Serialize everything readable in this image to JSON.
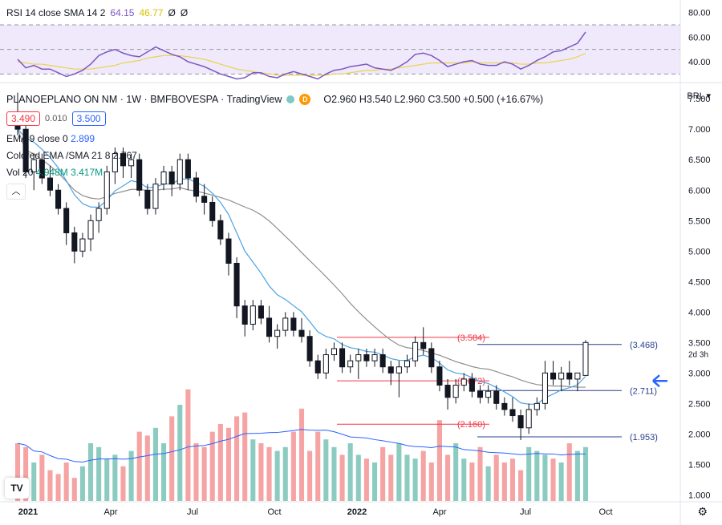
{
  "rsi_legend": {
    "name": "RSI 14 close SMA 14 2",
    "rsi_value": "64.15",
    "sma_value": "46.77",
    "extra1": "Ø",
    "extra2": "Ø"
  },
  "header": {
    "title": "PLANOEPLANO ON NM · 1W · BMFBOVESPA · TradingView",
    "badge": "D",
    "ohlc": "O2.960 H3.540 L2.960 C3.500 +0.500 (+16.67%)",
    "bid": "3.490",
    "spread": "0.010",
    "ask": "3.500"
  },
  "indicators": {
    "ema": "EMA 9 close 0",
    "ema_value": "2.899",
    "colored_ema": "Colored EMA /SMA 21 8",
    "colored_ema_value": "2.767",
    "vol": "Vol 20",
    "vol_value1": "4.948M",
    "vol_value2": "3.417M",
    "collapse_icon": "chevron-up"
  },
  "currency": "BRL",
  "colors": {
    "up": "#089981",
    "down": "#131722",
    "vol_up": "#8ccbc0",
    "vol_down": "#f5a3a3",
    "ema": "#4ba3e3",
    "sma": "#8f8f8f",
    "rsi": "#7e57c2",
    "rsi_sma": "#e8d44d",
    "level": "#2a3f8f",
    "red_level": "#f23645"
  },
  "price_axis": [
    "7.500",
    "7.000",
    "6.500",
    "6.000",
    "5.500",
    "5.000",
    "4.500",
    "4.000",
    "3.500",
    "3.000",
    "2.500",
    "2.000",
    "1.500",
    "1.000"
  ],
  "rsi_axis": [
    "80.00",
    "60.00",
    "40.00"
  ],
  "time_axis": [
    "2021",
    "Apr",
    "Jul",
    "Oct",
    "2022",
    "Apr",
    "Jul",
    "Oct"
  ],
  "price_tag": {
    "value": "3.500",
    "countdown": "2d 3h"
  },
  "levels": [
    {
      "label": "(3.584)",
      "color": "red",
      "value": 3.584
    },
    {
      "label": "(3.468)",
      "color": "blue",
      "value": 3.468
    },
    {
      "label": "(2.872)",
      "color": "red",
      "value": 2.872
    },
    {
      "label": "(2.711)",
      "color": "blue",
      "value": 2.711
    },
    {
      "label": "(2.160)",
      "color": "red",
      "value": 2.16
    },
    {
      "label": "(1.953)",
      "color": "blue",
      "value": 1.953
    }
  ],
  "chart_data": {
    "type": "candlestick",
    "candles": [
      [
        7.2,
        7.6,
        6.9,
        7.0
      ],
      [
        7.0,
        7.2,
        6.2,
        6.3
      ],
      [
        6.3,
        6.6,
        6.0,
        6.5
      ],
      [
        6.5,
        6.6,
        6.1,
        6.2
      ],
      [
        6.2,
        6.4,
        5.9,
        6.0
      ],
      [
        6.0,
        6.1,
        5.6,
        5.7
      ],
      [
        5.7,
        5.8,
        5.1,
        5.3
      ],
      [
        5.3,
        5.4,
        4.8,
        5.0
      ],
      [
        5.0,
        5.3,
        4.9,
        5.2
      ],
      [
        5.2,
        5.6,
        5.0,
        5.5
      ],
      [
        5.5,
        5.8,
        5.3,
        5.7
      ],
      [
        5.7,
        6.4,
        5.6,
        6.3
      ],
      [
        6.3,
        6.7,
        6.1,
        6.6
      ],
      [
        6.6,
        6.7,
        6.2,
        6.4
      ],
      [
        6.4,
        6.6,
        6.2,
        6.5
      ],
      [
        6.5,
        6.6,
        5.9,
        6.0
      ],
      [
        6.0,
        6.1,
        5.6,
        5.7
      ],
      [
        5.7,
        6.2,
        5.6,
        6.1
      ],
      [
        6.1,
        6.4,
        6.0,
        6.3
      ],
      [
        6.3,
        6.4,
        5.9,
        6.1
      ],
      [
        6.1,
        6.6,
        6.0,
        6.5
      ],
      [
        6.5,
        6.6,
        6.0,
        6.2
      ],
      [
        6.2,
        6.3,
        5.8,
        5.9
      ],
      [
        5.9,
        6.1,
        5.6,
        5.8
      ],
      [
        5.8,
        5.9,
        5.4,
        5.5
      ],
      [
        5.5,
        5.6,
        5.1,
        5.2
      ],
      [
        5.2,
        5.3,
        4.6,
        4.8
      ],
      [
        4.8,
        4.9,
        3.9,
        4.1
      ],
      [
        4.1,
        4.2,
        3.6,
        3.8
      ],
      [
        3.8,
        4.2,
        3.7,
        4.1
      ],
      [
        4.1,
        4.2,
        3.8,
        3.9
      ],
      [
        3.9,
        4.1,
        3.5,
        3.6
      ],
      [
        3.6,
        3.8,
        3.4,
        3.7
      ],
      [
        3.7,
        4.0,
        3.6,
        3.9
      ],
      [
        3.9,
        4.0,
        3.6,
        3.7
      ],
      [
        3.7,
        3.9,
        3.5,
        3.6
      ],
      [
        3.6,
        3.7,
        3.1,
        3.2
      ],
      [
        3.2,
        3.3,
        2.9,
        3.0
      ],
      [
        3.0,
        3.4,
        2.9,
        3.3
      ],
      [
        3.3,
        3.5,
        3.2,
        3.4
      ],
      [
        3.4,
        3.5,
        3.0,
        3.1
      ],
      [
        3.1,
        3.3,
        3.0,
        3.2
      ],
      [
        3.2,
        3.4,
        2.9,
        3.3
      ],
      [
        3.3,
        3.4,
        3.1,
        3.2
      ],
      [
        3.2,
        3.4,
        3.1,
        3.3
      ],
      [
        3.3,
        3.4,
        3.0,
        3.1
      ],
      [
        3.1,
        3.2,
        2.8,
        3.0
      ],
      [
        3.0,
        3.2,
        2.6,
        3.1
      ],
      [
        3.1,
        3.3,
        3.0,
        3.2
      ],
      [
        3.2,
        3.6,
        3.1,
        3.5
      ],
      [
        3.5,
        3.75,
        3.3,
        3.4
      ],
      [
        3.4,
        3.5,
        3.0,
        3.1
      ],
      [
        3.1,
        3.2,
        2.7,
        2.8
      ],
      [
        2.8,
        2.9,
        2.4,
        2.6
      ],
      [
        2.6,
        2.9,
        2.5,
        2.8
      ],
      [
        2.8,
        3.0,
        2.7,
        2.9
      ],
      [
        2.9,
        3.0,
        2.6,
        2.7
      ],
      [
        2.7,
        2.8,
        2.5,
        2.6
      ],
      [
        2.6,
        2.8,
        2.5,
        2.7
      ],
      [
        2.7,
        2.8,
        2.4,
        2.5
      ],
      [
        2.5,
        2.6,
        2.3,
        2.4
      ],
      [
        2.4,
        2.6,
        2.2,
        2.3
      ],
      [
        2.3,
        2.4,
        1.9,
        2.1
      ],
      [
        2.1,
        2.5,
        2.0,
        2.4
      ],
      [
        2.4,
        2.6,
        2.3,
        2.5
      ],
      [
        2.5,
        3.2,
        2.4,
        3.0
      ],
      [
        3.0,
        3.2,
        2.8,
        2.9
      ],
      [
        2.9,
        3.1,
        2.7,
        3.0
      ],
      [
        3.0,
        3.2,
        2.8,
        2.9
      ],
      [
        2.9,
        3.0,
        2.7,
        3.0
      ],
      [
        2.96,
        3.54,
        2.96,
        3.5
      ]
    ],
    "volume": [
      1.5,
      1.4,
      1.0,
      1.2,
      0.8,
      0.7,
      1.0,
      0.6,
      0.9,
      1.5,
      1.4,
      1.1,
      1.2,
      0.9,
      1.3,
      1.8,
      1.7,
      1.9,
      1.5,
      2.2,
      2.5,
      2.9,
      1.5,
      1.4,
      1.8,
      2.0,
      1.9,
      2.2,
      2.3,
      1.6,
      1.5,
      1.4,
      1.3,
      1.4,
      1.8,
      2.4,
      1.3,
      1.8,
      1.6,
      1.4,
      1.2,
      1.5,
      1.2,
      1.1,
      1.0,
      1.4,
      1.2,
      1.5,
      1.2,
      1.1,
      1.3,
      1.0,
      2.1,
      1.2,
      1.5,
      1.1,
      1.0,
      1.4,
      0.9,
      1.2,
      1.0,
      1.1,
      0.8,
      1.4,
      1.3,
      1.2,
      1.1,
      1.0,
      1.5,
      1.3,
      1.4
    ],
    "rsi": [
      42,
      35,
      37,
      34,
      34,
      31,
      28,
      30,
      33,
      38,
      45,
      48,
      50,
      47,
      45,
      44,
      48,
      52,
      49,
      46,
      44,
      40,
      38,
      36,
      33,
      30,
      28,
      26,
      27,
      31,
      31,
      28,
      27,
      30,
      32,
      30,
      28,
      26,
      30,
      33,
      34,
      36,
      37,
      38,
      35,
      34,
      33,
      36,
      40,
      46,
      47,
      45,
      41,
      36,
      38,
      40,
      41,
      38,
      37,
      37,
      40,
      38,
      34,
      37,
      41,
      44,
      48,
      49,
      52,
      55,
      64.15
    ],
    "rsi_sma": [
      40,
      39,
      38,
      38,
      37,
      36,
      35,
      34,
      34,
      34,
      35,
      36,
      37,
      39,
      40,
      41,
      43,
      44,
      45,
      45,
      45,
      44,
      43,
      42,
      40,
      38,
      36,
      34,
      33,
      32,
      31,
      30,
      29,
      29,
      29,
      29,
      29,
      29,
      29,
      30,
      30,
      31,
      32,
      33,
      33,
      34,
      34,
      35,
      36,
      37,
      38,
      39,
      39,
      39,
      39,
      39,
      40,
      39,
      39,
      39,
      39,
      39,
      38,
      38,
      39,
      39,
      40,
      41,
      42,
      44,
      46.77
    ],
    "ylim": [
      0.9,
      7.7
    ],
    "rsi_ylim": [
      25,
      85
    ]
  }
}
